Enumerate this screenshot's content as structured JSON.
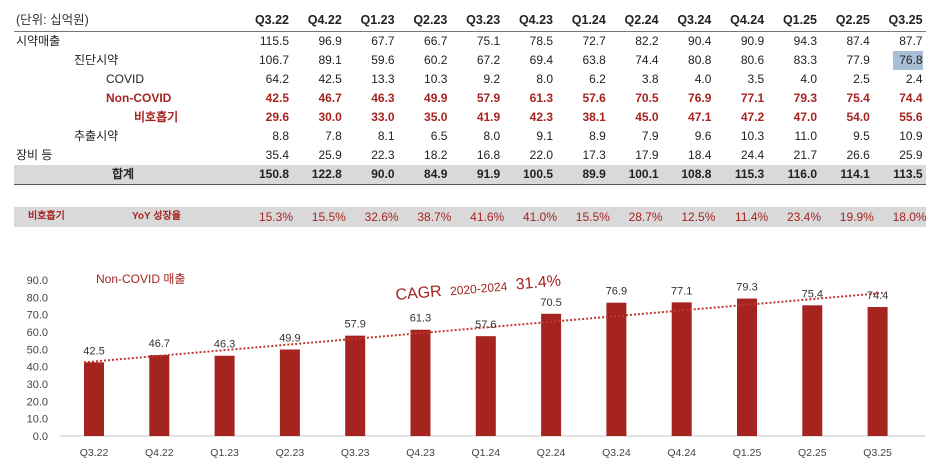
{
  "table": {
    "unit_label": "(단위: 십억원)",
    "columns": [
      "Q3.22",
      "Q4.22",
      "Q1.23",
      "Q2.23",
      "Q3.23",
      "Q4.23",
      "Q1.24",
      "Q2.24",
      "Q3.24",
      "Q4.24",
      "Q1.25",
      "Q2.25",
      "Q3.25"
    ],
    "rows": [
      {
        "label": "시약매출",
        "style": "plain",
        "indent": 0,
        "values": [
          "115.5",
          "96.9",
          "67.7",
          "66.7",
          "75.1",
          "78.5",
          "72.7",
          "82.2",
          "90.4",
          "90.9",
          "94.3",
          "87.4",
          "87.7"
        ]
      },
      {
        "label": "진단시약",
        "style": "plain",
        "indent": 1,
        "values": [
          "106.7",
          "89.1",
          "59.6",
          "60.2",
          "67.2",
          "69.4",
          "63.8",
          "74.4",
          "80.8",
          "80.6",
          "83.3",
          "77.9",
          "76.8"
        ]
      },
      {
        "label": "COVID",
        "style": "plain",
        "indent": 2,
        "values": [
          "64.2",
          "42.5",
          "13.3",
          "10.3",
          "9.2",
          "8.0",
          "6.2",
          "3.8",
          "4.0",
          "3.5",
          "4.0",
          "2.5",
          "2.4"
        ]
      },
      {
        "label": "Non-COVID",
        "style": "red",
        "indent": 3,
        "values": [
          "42.5",
          "46.7",
          "46.3",
          "49.9",
          "57.9",
          "61.3",
          "57.6",
          "70.5",
          "76.9",
          "77.1",
          "79.3",
          "75.4",
          "74.4"
        ]
      },
      {
        "label": "비호흡기",
        "style": "red",
        "indent": 4,
        "values": [
          "29.6",
          "30.0",
          "33.0",
          "35.0",
          "41.9",
          "42.3",
          "38.1",
          "45.0",
          "47.1",
          "47.2",
          "47.0",
          "54.0",
          "55.6"
        ]
      },
      {
        "label": "추출시약",
        "style": "plain",
        "indent": 1,
        "values": [
          "8.8",
          "7.8",
          "8.1",
          "6.5",
          "8.0",
          "9.1",
          "8.9",
          "7.9",
          "9.6",
          "10.3",
          "11.0",
          "9.5",
          "10.9"
        ]
      },
      {
        "label": "장비 등",
        "style": "plain",
        "indent": 0,
        "values": [
          "35.4",
          "25.9",
          "22.3",
          "18.2",
          "16.8",
          "22.0",
          "17.3",
          "17.9",
          "18.4",
          "24.4",
          "21.7",
          "26.6",
          "25.9"
        ]
      }
    ],
    "total": {
      "label": "합계",
      "values": [
        "150.8",
        "122.8",
        "90.0",
        "84.9",
        "91.9",
        "100.5",
        "89.9",
        "100.1",
        "108.8",
        "115.3",
        "116.0",
        "114.1",
        "113.5"
      ]
    },
    "highlighted_cell": {
      "row": 1,
      "col": 12
    }
  },
  "yoy": {
    "label1": "비호흡기",
    "label2": "YoY 성장율",
    "values": [
      "15.3%",
      "15.5%",
      "32.6%",
      "38.7%",
      "41.6%",
      "41.0%",
      "15.5%",
      "28.7%",
      "12.5%",
      "11.4%",
      "23.4%",
      "19.9%",
      "18.0%"
    ]
  },
  "chart_data": {
    "type": "bar",
    "title": "Non-COVID 매출",
    "annotation": {
      "prefix": "CAGR",
      "period": "2020-2024",
      "value": "31.4%"
    },
    "categories": [
      "Q3.22",
      "Q4.22",
      "Q1.23",
      "Q2.23",
      "Q3.23",
      "Q4.23",
      "Q1.24",
      "Q2.24",
      "Q3.24",
      "Q4.24",
      "Q1.25",
      "Q2.25",
      "Q3.25"
    ],
    "values": [
      42.5,
      46.7,
      46.3,
      49.9,
      57.9,
      61.3,
      57.6,
      70.5,
      76.9,
      77.1,
      79.3,
      75.4,
      74.4
    ],
    "labels": [
      "42.5",
      "46.7",
      "46.3",
      "49.9",
      "57.9",
      "61.3",
      "57.6",
      "70.5",
      "76.9",
      "77.1",
      "79.3",
      "75.4",
      "74.4"
    ],
    "yticks": [
      "0.0",
      "10.0",
      "20.0",
      "30.0",
      "40.0",
      "50.0",
      "60.0",
      "70.0",
      "80.0",
      "90.0"
    ],
    "ylim": [
      0,
      90
    ],
    "trendline": {
      "type": "linear",
      "style": "dotted",
      "start": 42.5,
      "end": 82.5
    },
    "xlabel": "",
    "ylabel": "",
    "grid": false,
    "colors": {
      "bar": "#a52420",
      "trend": "#c0392b",
      "title": "#a52420"
    }
  }
}
